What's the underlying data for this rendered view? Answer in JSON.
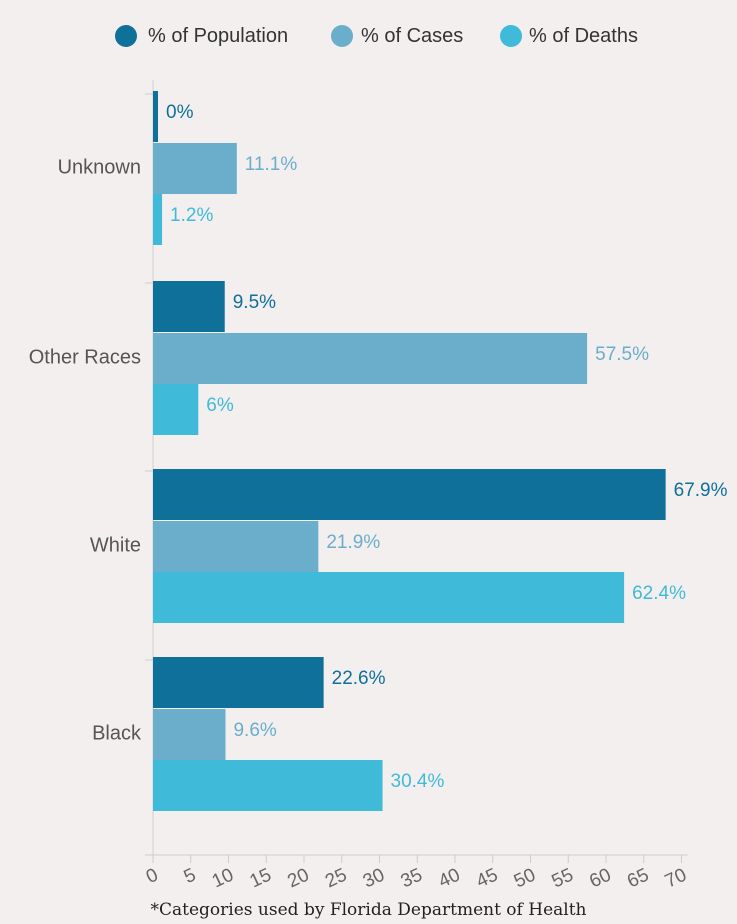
{
  "chart_data": {
    "type": "bar",
    "orientation": "horizontal",
    "categories": [
      "Unknown",
      "Other Races",
      "White",
      "Black"
    ],
    "series": [
      {
        "name": "% of Population",
        "color": "#0f7099",
        "values": [
          0,
          9.5,
          67.9,
          22.6
        ],
        "labels": [
          "0%",
          "9.5%",
          "67.9%",
          "22.6%"
        ]
      },
      {
        "name": "% of Cases",
        "color": "#6aaecb",
        "values": [
          11.1,
          57.5,
          21.9,
          9.6
        ],
        "labels": [
          "11.1%",
          "57.5%",
          "21.9%",
          "9.6%"
        ]
      },
      {
        "name": "% of Deaths",
        "color": "#3fbad8",
        "values": [
          1.2,
          6,
          62.4,
          30.4
        ],
        "labels": [
          "1.2%",
          "6%",
          "62.4%",
          "30.4%"
        ]
      }
    ],
    "x_ticks": [
      "0",
      "5",
      "10",
      "15",
      "20",
      "25",
      "30",
      "35",
      "40",
      "45",
      "50",
      "55",
      "60",
      "65",
      "70"
    ],
    "xlim": [
      0,
      70
    ],
    "legend_position": "top",
    "grid": false
  },
  "footnote": "*Categories used by Florida Department of Health"
}
